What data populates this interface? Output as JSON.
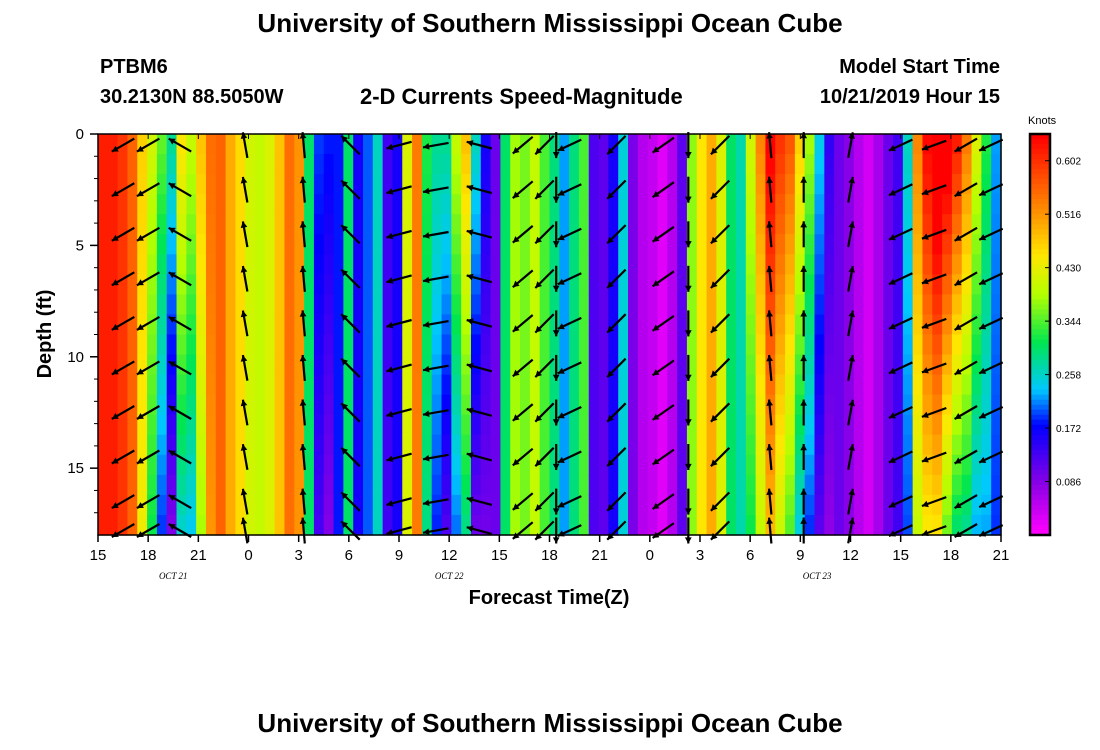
{
  "header": {
    "title": "University of Southern Mississippi Ocean Cube",
    "station": "PTBM6",
    "coordinates": "30.2130N 88.5050W",
    "subtitle": "2-D Currents Speed-Magnitude",
    "model_start_label": "Model Start Time",
    "model_start_value": "10/21/2019 Hour 15"
  },
  "footer": {
    "title": "University of Southern Mississippi Ocean Cube"
  },
  "chart_data": {
    "type": "heatmap",
    "title": "2-D Currents Speed-Magnitude",
    "xlabel": "Forecast Time(Z)",
    "ylabel": "Depth (ft)",
    "x_ticks": [
      "15",
      "18",
      "21",
      "0",
      "3",
      "6",
      "9",
      "12",
      "15",
      "18",
      "21",
      "0",
      "3",
      "6",
      "9",
      "12",
      "15",
      "18",
      "21"
    ],
    "date_labels": [
      {
        "label": "OCT 21",
        "hour_index": 4.5
      },
      {
        "label": "OCT 22",
        "hour_index": 21
      },
      {
        "label": "OCT 23",
        "hour_index": 43
      }
    ],
    "y_ticks": [
      0,
      5,
      10,
      15
    ],
    "ylim": [
      0,
      18
    ],
    "xlim": [
      0,
      54
    ],
    "colorbar": {
      "unit": "Knots",
      "ticks": [
        "0.602",
        "0.516",
        "0.430",
        "0.344",
        "0.258",
        "0.172",
        "0.086"
      ],
      "range": [
        0.0,
        0.645
      ]
    },
    "speed_by_hour": [
      0.62,
      0.62,
      0.6,
      0.56,
      0.45,
      0.35,
      0.25,
      0.16,
      0.33,
      0.3,
      0.42,
      0.53,
      0.56,
      0.5,
      0.46,
      0.41,
      0.4,
      0.42,
      0.48,
      0.55,
      0.52,
      0.3,
      0.15,
      0.12,
      0.18,
      0.3,
      0.16,
      0.2,
      0.26,
      0.13,
      0.16,
      0.42,
      0.54,
      0.3,
      0.22,
      0.18,
      0.28,
      0.36,
      0.16,
      0.12,
      0.1,
      0.3,
      0.38,
      0.36,
      0.4,
      0.34,
      0.29,
      0.22,
      0.29,
      0.34,
      0.12,
      0.11,
      0.16,
      0.25,
      0.09,
      0.05,
      0.04,
      0.02,
      0.05,
      0.11,
      0.37,
      0.45,
      0.5,
      0.42,
      0.3,
      0.27,
      0.35,
      0.45,
      0.55,
      0.48,
      0.43,
      0.33,
      0.26,
      0.16,
      0.1,
      0.1,
      0.08,
      0.05,
      0.03,
      0.06,
      0.1,
      0.13,
      0.22,
      0.45,
      0.52,
      0.55,
      0.48,
      0.42,
      0.38,
      0.3,
      0.26,
      0.2
    ],
    "depth_shallow_boost": [
      0.0,
      0.0,
      0.0,
      0.0,
      0.02,
      0.06,
      0.1,
      0.12,
      0.12,
      0.1,
      0.06,
      0.02,
      0.0,
      0.0,
      0.0,
      0.0,
      0.0,
      0.0,
      0.0,
      0.0,
      0.0,
      0.0,
      0.04,
      0.06,
      0.0,
      0.0,
      0.0,
      0.0,
      0.0,
      0.0,
      0.0,
      0.0,
      0.0,
      0.02,
      0.06,
      0.1,
      0.12,
      0.12,
      0.1,
      0.04,
      0.0,
      0.0,
      0.0,
      0.0,
      0.0,
      0.0,
      0.0,
      0.0,
      0.0,
      0.0,
      0.0,
      0.0,
      0.0,
      0.0,
      0.0,
      0.0,
      0.0,
      0.0,
      0.0,
      0.0,
      0.0,
      0.0,
      0.0,
      0.0,
      0.0,
      0.0,
      0.06,
      0.08,
      0.1,
      0.12,
      0.14,
      0.14,
      0.12,
      0.08,
      0.04,
      0.0,
      0.0,
      0.0,
      0.0,
      0.0,
      0.0,
      0.0,
      0.04,
      0.08,
      0.12,
      0.16,
      0.2,
      0.2,
      0.16,
      0.12,
      0.06,
      0.02
    ],
    "vector_times_hours": [
      1.5,
      3.0,
      4.9,
      8.8,
      12.3,
      15.1,
      18.0,
      20.2,
      22.8,
      25.4,
      26.7,
      27.4,
      28.2,
      31.0,
      33.8,
      35.3,
      37.2,
      40.2,
      42.2,
      45.0,
      48.0,
      50.0,
      51.9,
      53.4
    ],
    "vector_depths_ft": [
      0.5,
      2.5,
      4.5,
      6.5,
      8.5,
      10.5,
      12.5,
      14.5,
      16.5,
      17.8
    ],
    "vector_angles_deg": [
      210,
      210,
      150,
      100,
      95,
      135,
      195,
      190,
      165,
      220,
      225,
      270,
      205,
      225,
      215,
      270,
      225,
      95,
      90,
      80,
      205,
      200,
      210,
      205
    ]
  }
}
